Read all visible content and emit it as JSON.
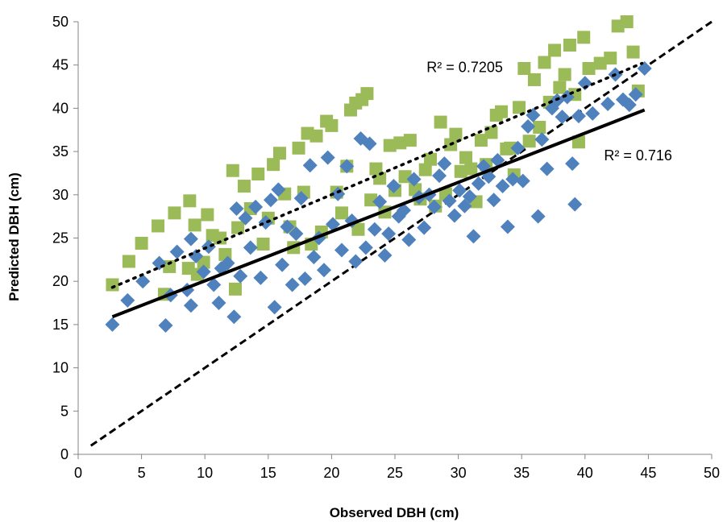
{
  "chart_data": {
    "type": "scatter",
    "xlabel": "Observed DBH (cm)",
    "ylabel": "Predicted DBH (cm)",
    "xlim": [
      0,
      50
    ],
    "ylim": [
      0,
      50
    ],
    "xticks": [
      0,
      5,
      10,
      15,
      20,
      25,
      30,
      35,
      40,
      45,
      50
    ],
    "yticks": [
      0,
      5,
      10,
      15,
      20,
      25,
      30,
      35,
      40,
      45,
      50
    ],
    "grid": false,
    "legend": "none",
    "annotations": [
      {
        "text": "R² = 0.7205",
        "at": [
          27.5,
          44.2
        ]
      },
      {
        "text": "R² = 0.716",
        "at": [
          41.5,
          34.0
        ]
      }
    ],
    "reference_line": {
      "style": "dashed",
      "color": "#000000",
      "from": [
        1,
        1
      ],
      "to": [
        50,
        50
      ]
    },
    "series": [
      {
        "marker": "square",
        "color": "#9BBB59",
        "trendline": {
          "style": "dotted",
          "color": "#000000",
          "x": [
            2.7,
            44.5
          ],
          "y": [
            19.3,
            45.2
          ]
        },
        "points": [
          [
            2.7,
            19.6
          ],
          [
            4.0,
            22.3
          ],
          [
            5.0,
            24.4
          ],
          [
            6.3,
            26.4
          ],
          [
            6.8,
            18.5
          ],
          [
            7.2,
            21.7
          ],
          [
            7.6,
            27.9
          ],
          [
            8.7,
            21.5
          ],
          [
            8.8,
            29.3
          ],
          [
            9.2,
            26.5
          ],
          [
            9.4,
            20.8
          ],
          [
            9.9,
            22.2
          ],
          [
            10.2,
            27.7
          ],
          [
            10.6,
            25.3
          ],
          [
            11.2,
            25.0
          ],
          [
            11.6,
            23.1
          ],
          [
            12.2,
            32.8
          ],
          [
            12.4,
            19.1
          ],
          [
            12.6,
            26.2
          ],
          [
            13.1,
            31.0
          ],
          [
            13.6,
            28.4
          ],
          [
            14.2,
            32.4
          ],
          [
            14.6,
            24.3
          ],
          [
            15.0,
            27.3
          ],
          [
            15.4,
            33.5
          ],
          [
            15.9,
            34.8
          ],
          [
            16.3,
            30.1
          ],
          [
            16.7,
            26.3
          ],
          [
            17.0,
            23.9
          ],
          [
            17.4,
            35.4
          ],
          [
            17.8,
            30.3
          ],
          [
            18.1,
            37.1
          ],
          [
            18.4,
            24.3
          ],
          [
            18.8,
            36.8
          ],
          [
            19.2,
            25.7
          ],
          [
            19.6,
            38.5
          ],
          [
            20.0,
            38.0
          ],
          [
            20.4,
            30.3
          ],
          [
            20.8,
            27.9
          ],
          [
            21.2,
            33.3
          ],
          [
            21.5,
            39.8
          ],
          [
            21.9,
            40.6
          ],
          [
            22.1,
            26.0
          ],
          [
            22.4,
            41.0
          ],
          [
            22.8,
            41.7
          ],
          [
            23.1,
            29.4
          ],
          [
            23.5,
            33.0
          ],
          [
            23.8,
            31.9
          ],
          [
            24.2,
            28.0
          ],
          [
            24.6,
            35.7
          ],
          [
            25.0,
            30.5
          ],
          [
            25.4,
            36.0
          ],
          [
            25.8,
            32.1
          ],
          [
            26.2,
            36.3
          ],
          [
            26.6,
            30.6
          ],
          [
            27.0,
            29.5
          ],
          [
            27.4,
            32.9
          ],
          [
            27.8,
            34.1
          ],
          [
            28.2,
            28.7
          ],
          [
            28.6,
            38.4
          ],
          [
            29.0,
            30.1
          ],
          [
            29.4,
            35.8
          ],
          [
            29.8,
            37.0
          ],
          [
            30.2,
            32.7
          ],
          [
            30.6,
            34.3
          ],
          [
            31.0,
            33.0
          ],
          [
            31.4,
            29.2
          ],
          [
            31.8,
            36.3
          ],
          [
            32.2,
            33.5
          ],
          [
            32.6,
            37.2
          ],
          [
            33.0,
            39.2
          ],
          [
            33.4,
            39.6
          ],
          [
            33.8,
            35.3
          ],
          [
            34.1,
            35.4
          ],
          [
            34.4,
            32.3
          ],
          [
            34.8,
            40.1
          ],
          [
            35.2,
            44.6
          ],
          [
            35.6,
            36.2
          ],
          [
            36.0,
            43.3
          ],
          [
            36.4,
            37.8
          ],
          [
            36.8,
            45.3
          ],
          [
            37.2,
            40.7
          ],
          [
            37.6,
            46.7
          ],
          [
            38.0,
            42.4
          ],
          [
            38.4,
            43.9
          ],
          [
            38.8,
            47.3
          ],
          [
            39.2,
            41.6
          ],
          [
            39.5,
            36.1
          ],
          [
            39.9,
            48.2
          ],
          [
            40.3,
            44.6
          ],
          [
            41.2,
            45.2
          ],
          [
            42.0,
            45.8
          ],
          [
            42.6,
            49.5
          ],
          [
            43.3,
            50.0
          ],
          [
            43.8,
            46.5
          ],
          [
            44.2,
            42.0
          ]
        ]
      },
      {
        "marker": "diamond",
        "color": "#4F81BD",
        "trendline": {
          "style": "solid",
          "color": "#000000",
          "x": [
            2.7,
            44.7
          ],
          "y": [
            15.9,
            39.8
          ]
        },
        "points": [
          [
            2.7,
            15.0
          ],
          [
            3.9,
            17.8
          ],
          [
            5.1,
            20.0
          ],
          [
            6.4,
            22.1
          ],
          [
            6.9,
            14.9
          ],
          [
            7.3,
            18.4
          ],
          [
            7.8,
            23.4
          ],
          [
            8.6,
            19.0
          ],
          [
            8.9,
            24.9
          ],
          [
            8.9,
            17.2
          ],
          [
            9.3,
            22.9
          ],
          [
            9.9,
            21.1
          ],
          [
            10.3,
            24.0
          ],
          [
            10.7,
            19.6
          ],
          [
            11.1,
            17.5
          ],
          [
            11.3,
            21.5
          ],
          [
            11.8,
            22.1
          ],
          [
            12.3,
            15.9
          ],
          [
            12.5,
            28.4
          ],
          [
            12.8,
            20.6
          ],
          [
            13.2,
            27.3
          ],
          [
            13.6,
            23.9
          ],
          [
            14.0,
            28.6
          ],
          [
            14.4,
            20.4
          ],
          [
            14.8,
            26.8
          ],
          [
            15.2,
            29.4
          ],
          [
            15.5,
            17.0
          ],
          [
            15.8,
            30.6
          ],
          [
            16.1,
            21.9
          ],
          [
            16.5,
            26.3
          ],
          [
            16.9,
            19.6
          ],
          [
            17.2,
            25.5
          ],
          [
            17.6,
            29.6
          ],
          [
            17.9,
            20.3
          ],
          [
            18.3,
            33.4
          ],
          [
            18.6,
            22.8
          ],
          [
            19.0,
            25.0
          ],
          [
            19.4,
            21.3
          ],
          [
            19.7,
            34.3
          ],
          [
            20.1,
            26.6
          ],
          [
            20.5,
            30.1
          ],
          [
            20.8,
            23.6
          ],
          [
            21.2,
            33.3
          ],
          [
            21.6,
            27.0
          ],
          [
            21.9,
            22.3
          ],
          [
            22.3,
            36.5
          ],
          [
            22.7,
            23.9
          ],
          [
            23.0,
            35.9
          ],
          [
            23.4,
            26.0
          ],
          [
            23.8,
            29.2
          ],
          [
            24.2,
            23.0
          ],
          [
            24.5,
            25.5
          ],
          [
            24.9,
            31.0
          ],
          [
            25.3,
            27.5
          ],
          [
            25.7,
            28.2
          ],
          [
            26.1,
            24.8
          ],
          [
            26.5,
            31.8
          ],
          [
            26.9,
            29.7
          ],
          [
            27.3,
            26.2
          ],
          [
            27.7,
            30.0
          ],
          [
            28.1,
            28.6
          ],
          [
            28.5,
            32.2
          ],
          [
            28.9,
            33.6
          ],
          [
            29.3,
            29.3
          ],
          [
            29.7,
            27.6
          ],
          [
            30.1,
            30.5
          ],
          [
            30.5,
            28.7
          ],
          [
            30.9,
            29.8
          ],
          [
            31.2,
            25.2
          ],
          [
            31.6,
            31.3
          ],
          [
            32.0,
            33.3
          ],
          [
            32.4,
            32.1
          ],
          [
            32.8,
            29.4
          ],
          [
            33.1,
            34.0
          ],
          [
            33.5,
            31.0
          ],
          [
            33.9,
            26.3
          ],
          [
            34.3,
            31.8
          ],
          [
            34.7,
            35.4
          ],
          [
            35.1,
            31.6
          ],
          [
            35.5,
            37.9
          ],
          [
            35.9,
            39.2
          ],
          [
            36.3,
            27.5
          ],
          [
            36.6,
            36.4
          ],
          [
            37.0,
            33.0
          ],
          [
            37.4,
            40.0
          ],
          [
            37.8,
            40.9
          ],
          [
            38.2,
            39.0
          ],
          [
            38.6,
            41.3
          ],
          [
            39.0,
            33.6
          ],
          [
            39.2,
            28.9
          ],
          [
            39.5,
            39.1
          ],
          [
            40.0,
            42.9
          ],
          [
            40.6,
            39.4
          ],
          [
            41.8,
            40.5
          ],
          [
            42.4,
            43.9
          ],
          [
            43.0,
            41.0
          ],
          [
            43.5,
            40.4
          ],
          [
            44.0,
            41.6
          ],
          [
            44.7,
            44.6
          ]
        ]
      }
    ]
  }
}
